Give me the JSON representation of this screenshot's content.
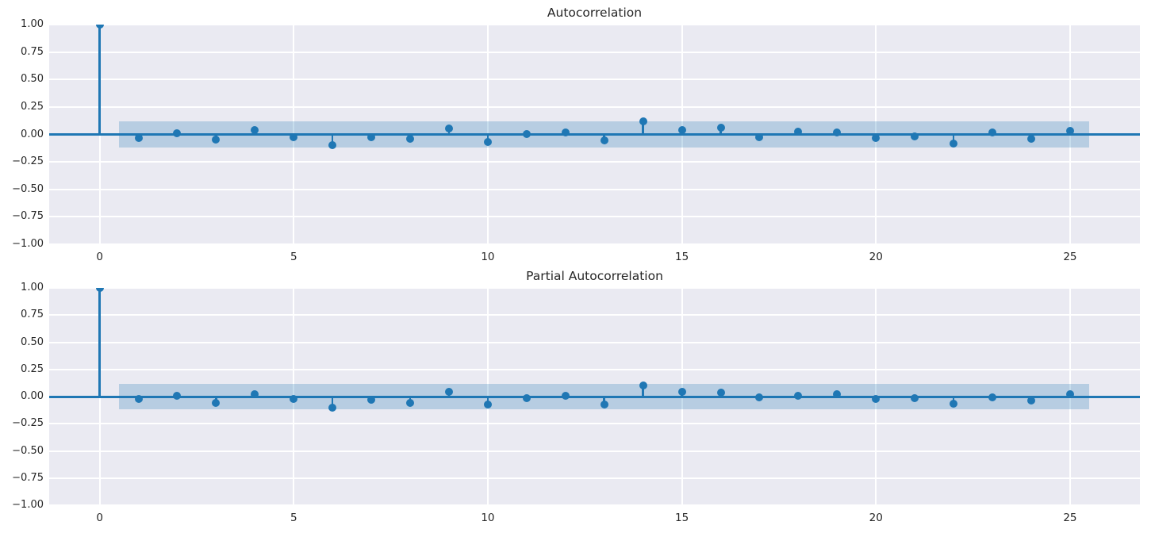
{
  "figure": {
    "background": "#ffffff",
    "text_color": "#262626",
    "accent_color": "#1f77b4",
    "band_color": "rgba(31, 119, 180, 0.25)",
    "axes_background": "#eaeaf2",
    "grid_color": "#ffffff"
  },
  "chart_data": [
    {
      "type": "stem",
      "title": "Autocorrelation",
      "xlabel": "",
      "ylabel": "",
      "xlim": [
        -1.3,
        26.8
      ],
      "ylim": [
        -1.0,
        1.0
      ],
      "grid": true,
      "legend": "none",
      "x": [
        0,
        1,
        2,
        3,
        4,
        5,
        6,
        7,
        8,
        9,
        10,
        11,
        12,
        13,
        14,
        15,
        16,
        17,
        18,
        19,
        20,
        21,
        22,
        23,
        24,
        25
      ],
      "values": [
        1.0,
        -0.03,
        0.01,
        -0.05,
        0.04,
        -0.025,
        -0.1,
        -0.025,
        -0.04,
        0.055,
        -0.07,
        0.005,
        0.015,
        -0.055,
        0.12,
        0.04,
        0.06,
        -0.025,
        0.025,
        0.02,
        -0.03,
        -0.02,
        -0.085,
        0.02,
        -0.04,
        0.035
      ],
      "confidence_band": {
        "level": 0.12,
        "x_start": 0.5,
        "x_end": 25.5
      },
      "xticks": {
        "values": [
          0,
          5,
          10,
          15,
          20,
          25
        ],
        "labels": [
          "0",
          "5",
          "10",
          "15",
          "20",
          "25"
        ]
      },
      "yticks": {
        "values": [
          1.0,
          0.75,
          0.5,
          0.25,
          0.0,
          -0.25,
          -0.5,
          -0.75,
          -1.0
        ],
        "labels": [
          "1.00",
          "0.75",
          "0.50",
          "0.25",
          "0.00",
          "−0.25",
          "−0.50",
          "−0.75",
          "−1.00"
        ]
      }
    },
    {
      "type": "stem",
      "title": "Partial Autocorrelation",
      "xlabel": "",
      "ylabel": "",
      "xlim": [
        -1.3,
        26.8
      ],
      "ylim": [
        -1.0,
        1.0
      ],
      "grid": true,
      "legend": "none",
      "x": [
        0,
        1,
        2,
        3,
        4,
        5,
        6,
        7,
        8,
        9,
        10,
        11,
        12,
        13,
        14,
        15,
        16,
        17,
        18,
        19,
        20,
        21,
        22,
        23,
        24,
        25
      ],
      "values": [
        1.0,
        -0.025,
        0.005,
        -0.055,
        0.025,
        -0.025,
        -0.105,
        -0.03,
        -0.055,
        0.045,
        -0.07,
        -0.015,
        0.005,
        -0.075,
        0.105,
        0.045,
        0.04,
        -0.01,
        0.01,
        0.02,
        -0.02,
        -0.015,
        -0.065,
        -0.01,
        -0.035,
        0.025
      ],
      "confidence_band": {
        "level": 0.12,
        "x_start": 0.5,
        "x_end": 25.5
      },
      "xticks": {
        "values": [
          0,
          5,
          10,
          15,
          20,
          25
        ],
        "labels": [
          "0",
          "5",
          "10",
          "15",
          "20",
          "25"
        ]
      },
      "yticks": {
        "values": [
          1.0,
          0.75,
          0.5,
          0.25,
          0.0,
          -0.25,
          -0.5,
          -0.75,
          -1.0
        ],
        "labels": [
          "1.00",
          "0.75",
          "0.50",
          "0.25",
          "0.00",
          "−0.25",
          "−0.50",
          "−0.75",
          "−1.00"
        ]
      }
    }
  ]
}
